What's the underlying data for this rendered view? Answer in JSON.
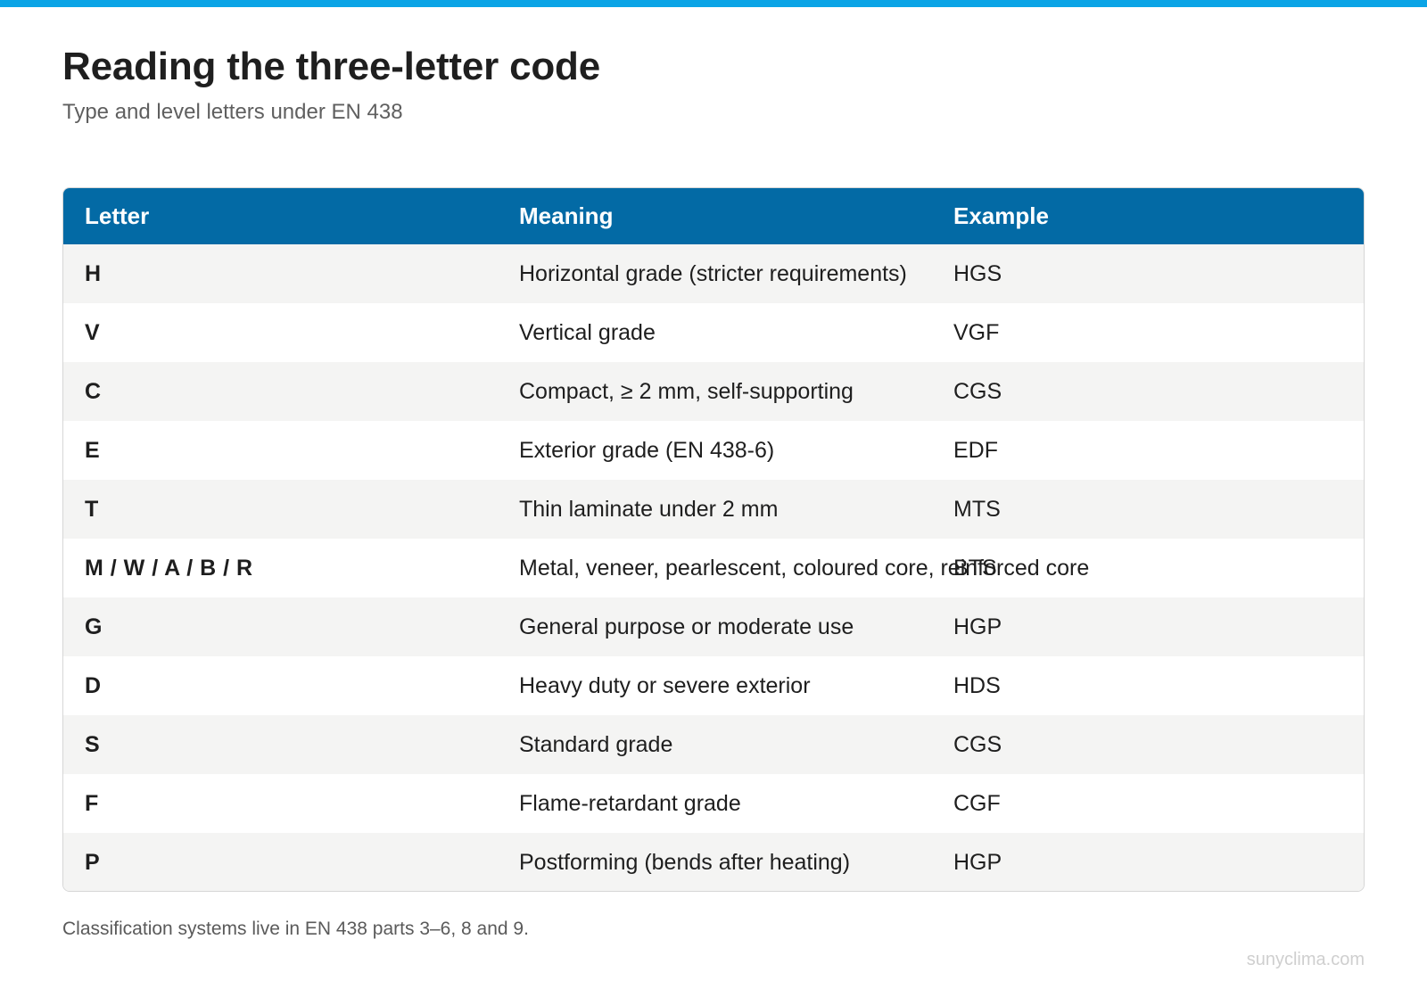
{
  "header": {
    "title": "Reading the three-letter code",
    "subtitle": "Type and level letters under EN 438"
  },
  "table": {
    "columns": [
      "Letter",
      "Meaning",
      "Example"
    ],
    "rows": [
      {
        "letter": "H",
        "meaning": "Horizontal grade (stricter requirements)",
        "example": "HGS"
      },
      {
        "letter": "V",
        "meaning": "Vertical grade",
        "example": "VGF"
      },
      {
        "letter": "C",
        "meaning": "Compact, ≥ 2 mm, self-supporting",
        "example": "CGS"
      },
      {
        "letter": "E",
        "meaning": "Exterior grade (EN 438-6)",
        "example": "EDF"
      },
      {
        "letter": "T",
        "meaning": "Thin laminate under 2 mm",
        "example": "MTS"
      },
      {
        "letter": "M / W / A / B / R",
        "meaning": "Metal, veneer, pearlescent, coloured core, reinforced core",
        "example": "BTS"
      },
      {
        "letter": "G",
        "meaning": "General purpose or moderate use",
        "example": "HGP"
      },
      {
        "letter": "D",
        "meaning": "Heavy duty or severe exterior",
        "example": "HDS"
      },
      {
        "letter": "S",
        "meaning": "Standard grade",
        "example": "CGS"
      },
      {
        "letter": "F",
        "meaning": "Flame-retardant grade",
        "example": "CGF"
      },
      {
        "letter": "P",
        "meaning": "Postforming (bends after heating)",
        "example": "HGP"
      }
    ]
  },
  "footer": {
    "note": "Classification systems live in EN 438 parts 3–6, 8 and 9.",
    "watermark": "sunyclima.com"
  },
  "colors": {
    "top_bar": "#0ba4e6",
    "table_header": "#036aa5",
    "row_alt": "#f4f4f3"
  }
}
